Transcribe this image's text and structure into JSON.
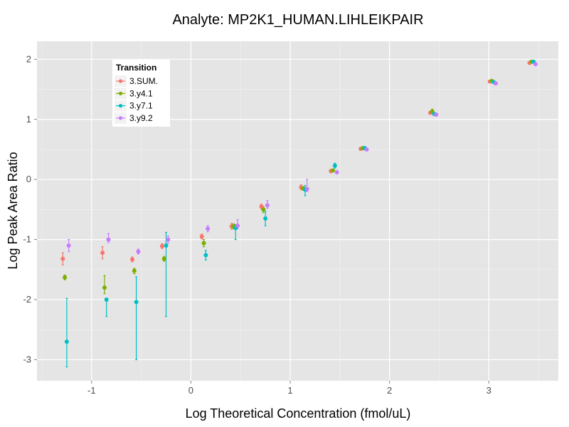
{
  "chart_data": {
    "type": "scatter",
    "title": "Analyte: MP2K1_HUMAN.LIHLEIKPAIR",
    "xlabel": "Log Theoretical Concentration (fmol/uL)",
    "ylabel": "Log Peak Area Ratio",
    "xlim": [
      -1.55,
      3.7
    ],
    "ylim": [
      -3.35,
      2.3
    ],
    "x_ticks": [
      -1,
      0,
      1,
      2,
      3
    ],
    "y_ticks": [
      -3,
      -2,
      -1,
      0,
      1,
      2
    ],
    "grid": true,
    "legend": {
      "title": "Transition",
      "position": "top-left"
    },
    "series": [
      {
        "name": "3.SUM.",
        "color": "#F8766D",
        "points": [
          {
            "x": -1.29,
            "y": -1.32,
            "lo": -1.42,
            "hi": -1.22
          },
          {
            "x": -0.89,
            "y": -1.22,
            "lo": -1.32,
            "hi": -1.12
          },
          {
            "x": -0.59,
            "y": -1.33,
            "lo": -1.37,
            "hi": -1.29
          },
          {
            "x": -0.29,
            "y": -1.11,
            "lo": -1.15,
            "hi": -1.07
          },
          {
            "x": 0.11,
            "y": -0.95,
            "lo": -0.99,
            "hi": -0.91
          },
          {
            "x": 0.41,
            "y": -0.78,
            "lo": -0.83,
            "hi": -0.73
          },
          {
            "x": 0.71,
            "y": -0.45,
            "lo": -0.49,
            "hi": -0.41
          },
          {
            "x": 1.11,
            "y": -0.13,
            "lo": -0.17,
            "hi": -0.09
          },
          {
            "x": 1.41,
            "y": 0.14,
            "lo": 0.11,
            "hi": 0.17
          },
          {
            "x": 1.71,
            "y": 0.51,
            "lo": 0.49,
            "hi": 0.53
          },
          {
            "x": 2.41,
            "y": 1.11,
            "lo": 1.09,
            "hi": 1.13
          },
          {
            "x": 3.01,
            "y": 1.63,
            "lo": 1.61,
            "hi": 1.65
          },
          {
            "x": 3.41,
            "y": 1.94,
            "lo": 1.92,
            "hi": 1.96
          }
        ]
      },
      {
        "name": "3.y4.1",
        "color": "#7CAE00",
        "points": [
          {
            "x": -1.27,
            "y": -1.63,
            "lo": -1.67,
            "hi": -1.59
          },
          {
            "x": -0.87,
            "y": -1.8,
            "lo": -1.9,
            "hi": -1.6
          },
          {
            "x": -0.57,
            "y": -1.52,
            "lo": -1.57,
            "hi": -1.48
          },
          {
            "x": -0.27,
            "y": -1.32,
            "lo": -1.36,
            "hi": -1.28
          },
          {
            "x": 0.13,
            "y": -1.06,
            "lo": -1.12,
            "hi": -1.0
          },
          {
            "x": 0.43,
            "y": -0.78,
            "lo": -0.82,
            "hi": -0.74
          },
          {
            "x": 0.73,
            "y": -0.5,
            "lo": -0.55,
            "hi": -0.45
          },
          {
            "x": 1.13,
            "y": -0.15,
            "lo": -0.18,
            "hi": -0.12
          },
          {
            "x": 1.43,
            "y": 0.15,
            "lo": 0.13,
            "hi": 0.17
          },
          {
            "x": 1.73,
            "y": 0.52,
            "lo": 0.5,
            "hi": 0.54
          },
          {
            "x": 2.43,
            "y": 1.13,
            "lo": 1.1,
            "hi": 1.17
          },
          {
            "x": 3.03,
            "y": 1.64,
            "lo": 1.62,
            "hi": 1.66
          },
          {
            "x": 3.43,
            "y": 1.96,
            "lo": 1.94,
            "hi": 1.98
          }
        ]
      },
      {
        "name": "3.y7.1",
        "color": "#00BFC4",
        "points": [
          {
            "x": -1.25,
            "y": -2.7,
            "lo": -3.12,
            "hi": -1.98
          },
          {
            "x": -0.85,
            "y": -2.0,
            "lo": -2.28,
            "hi": -1.98
          },
          {
            "x": -0.55,
            "y": -2.04,
            "lo": -3.0,
            "hi": -1.62
          },
          {
            "x": -0.25,
            "y": -1.1,
            "lo": -2.28,
            "hi": -0.88
          },
          {
            "x": 0.15,
            "y": -1.26,
            "lo": -1.34,
            "hi": -1.18
          },
          {
            "x": 0.45,
            "y": -0.81,
            "lo": -1.0,
            "hi": -0.75
          },
          {
            "x": 0.75,
            "y": -0.65,
            "lo": -0.77,
            "hi": -0.53
          },
          {
            "x": 1.15,
            "y": -0.17,
            "lo": -0.27,
            "hi": -0.1
          },
          {
            "x": 1.45,
            "y": 0.23,
            "lo": 0.19,
            "hi": 0.27
          },
          {
            "x": 1.75,
            "y": 0.52,
            "lo": 0.5,
            "hi": 0.55
          },
          {
            "x": 2.45,
            "y": 1.09,
            "lo": 1.07,
            "hi": 1.11
          },
          {
            "x": 3.05,
            "y": 1.62,
            "lo": 1.6,
            "hi": 1.64
          },
          {
            "x": 3.45,
            "y": 1.96,
            "lo": 1.94,
            "hi": 1.98
          }
        ]
      },
      {
        "name": "3.y9.2",
        "color": "#C77CFF",
        "points": [
          {
            "x": -1.23,
            "y": -1.1,
            "lo": -1.2,
            "hi": -1.0
          },
          {
            "x": -0.83,
            "y": -1.0,
            "lo": -1.05,
            "hi": -0.9
          },
          {
            "x": -0.53,
            "y": -1.2,
            "lo": -1.24,
            "hi": -1.16
          },
          {
            "x": -0.23,
            "y": -1.0,
            "lo": -1.06,
            "hi": -0.94
          },
          {
            "x": 0.17,
            "y": -0.82,
            "lo": -0.87,
            "hi": -0.77
          },
          {
            "x": 0.47,
            "y": -0.77,
            "lo": -0.82,
            "hi": -0.67
          },
          {
            "x": 0.77,
            "y": -0.43,
            "lo": -0.48,
            "hi": -0.35
          },
          {
            "x": 1.17,
            "y": -0.16,
            "lo": -0.2,
            "hi": 0.0
          },
          {
            "x": 1.47,
            "y": 0.12,
            "lo": 0.1,
            "hi": 0.14
          },
          {
            "x": 1.77,
            "y": 0.5,
            "lo": 0.48,
            "hi": 0.52
          },
          {
            "x": 2.47,
            "y": 1.08,
            "lo": 1.06,
            "hi": 1.1
          },
          {
            "x": 3.07,
            "y": 1.6,
            "lo": 1.58,
            "hi": 1.62
          },
          {
            "x": 3.47,
            "y": 1.92,
            "lo": 1.9,
            "hi": 1.94
          }
        ]
      }
    ]
  }
}
